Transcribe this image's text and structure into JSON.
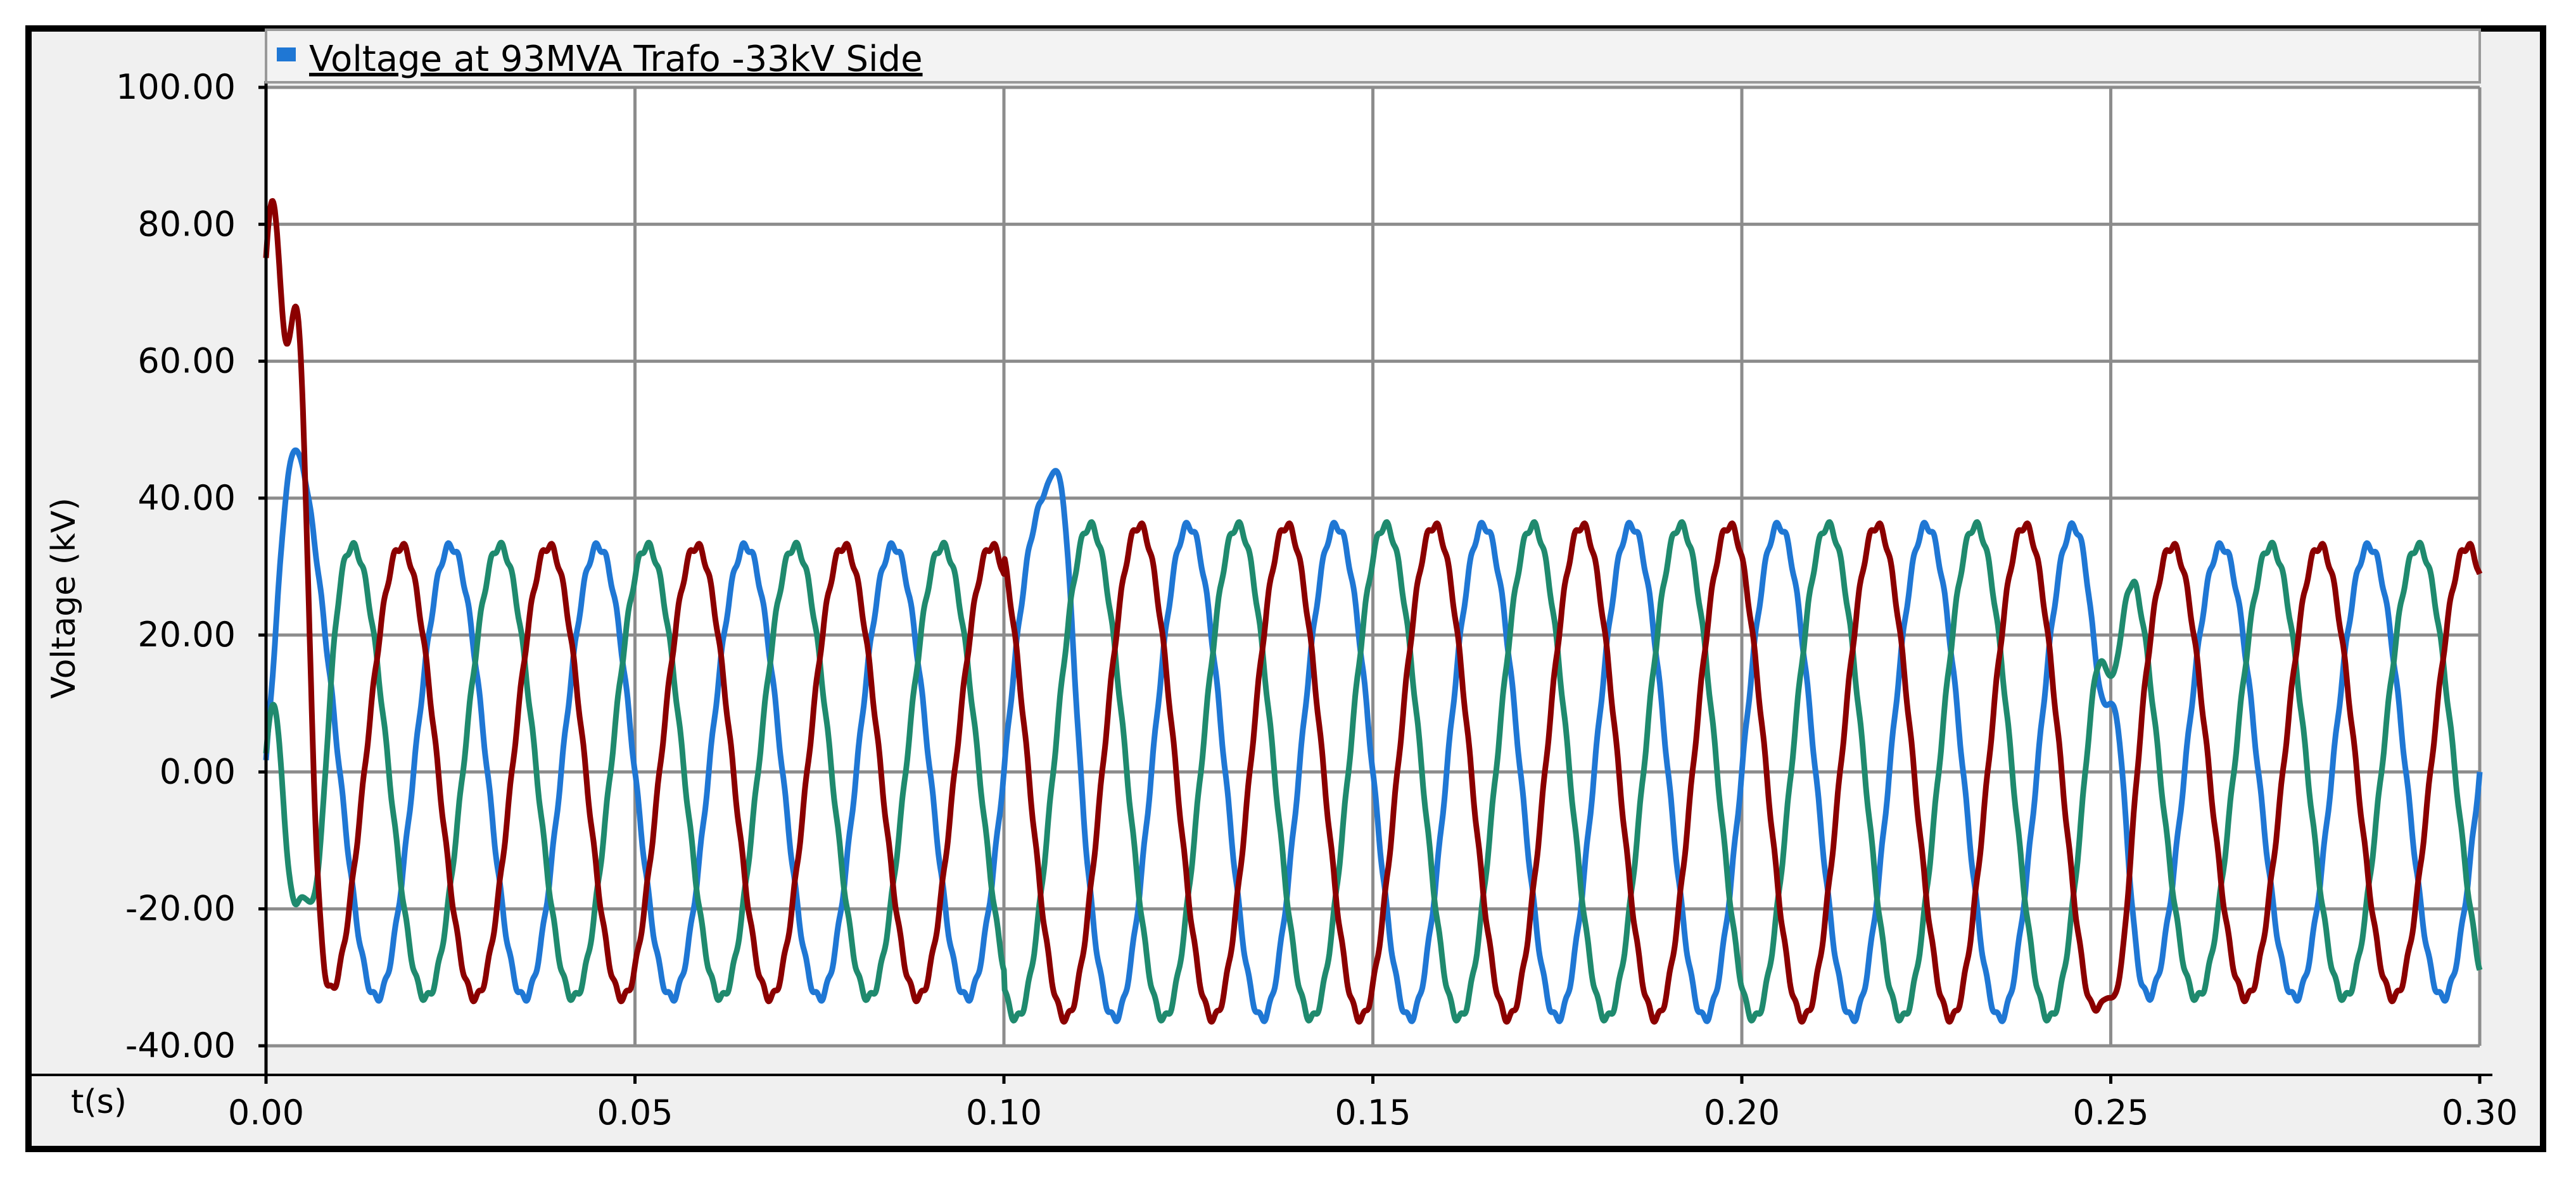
{
  "chart_data": {
    "type": "line",
    "legend": {
      "position": "top-left",
      "label": "Voltage at 93MVA Trafo -33kV Side",
      "color": "#1f77d4"
    },
    "ylabel": "Voltage (kV)",
    "xlabel": "t(s)",
    "xlim": [
      0.0,
      0.3
    ],
    "ylim": [
      -40.0,
      100.0
    ],
    "xticks": [
      "0.00",
      "0.05",
      "0.10",
      "0.15",
      "0.20",
      "0.25",
      "0.30"
    ],
    "yticks": [
      "100.00",
      "80.00",
      "60.00",
      "40.00",
      "20.00",
      "0.00",
      "-20.00",
      "-40.00"
    ],
    "grid": true,
    "frequency_hz": 50,
    "series": [
      {
        "color": "#1f77d4",
        "phase_deg": 0,
        "amplitude_kv": [
          {
            "t_start": 0.0,
            "t_end": 0.1,
            "value": 33
          },
          {
            "t_start": 0.1,
            "t_end": 0.25,
            "value": 36
          },
          {
            "t_start": 0.25,
            "t_end": 0.3,
            "value": 33
          }
        ],
        "transients": [
          {
            "t": 0.004,
            "value": 47
          },
          {
            "t": 0.107,
            "value": 44
          },
          {
            "t": 0.25,
            "value": 10
          }
        ]
      },
      {
        "color": "#1f8a6e",
        "phase_deg": -120,
        "amplitude_kv": [
          {
            "t_start": 0.0,
            "t_end": 0.1,
            "value": 33
          },
          {
            "t_start": 0.1,
            "t_end": 0.25,
            "value": 36
          },
          {
            "t_start": 0.25,
            "t_end": 0.3,
            "value": 33
          }
        ],
        "transients": [
          {
            "t": 0.001,
            "value": 10
          },
          {
            "t": 0.006,
            "value": -19
          },
          {
            "t": 0.25,
            "value": 14
          }
        ]
      },
      {
        "color": "#8b0000",
        "phase_deg": 120,
        "amplitude_kv": [
          {
            "t_start": 0.0,
            "t_end": 0.1,
            "value": 33
          },
          {
            "t_start": 0.1,
            "t_end": 0.25,
            "value": 36
          },
          {
            "t_start": 0.25,
            "t_end": 0.3,
            "value": 33
          }
        ],
        "transients": [
          {
            "t": 0.001,
            "value": 86
          },
          {
            "t": 0.004,
            "value": 68
          },
          {
            "t": 0.25,
            "value": -33
          }
        ]
      }
    ]
  }
}
